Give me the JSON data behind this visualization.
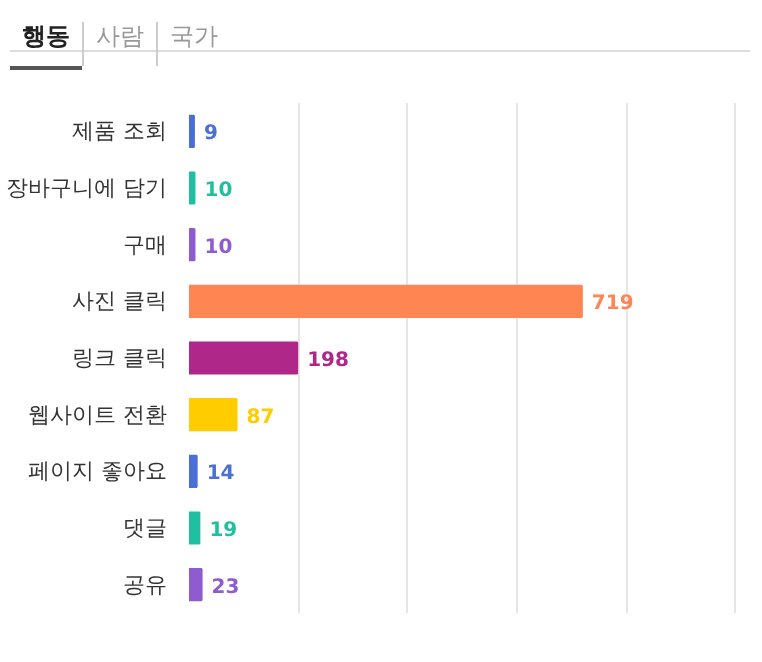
{
  "chart_data": {
    "type": "bar",
    "orientation": "horizontal",
    "categories": [
      "제품 조회",
      "장바구니에 담기",
      "구매",
      "사진 클릭",
      "링크 클릭",
      "웹사이트 전환",
      "페이지 좋아요",
      "댓글",
      "공유"
    ],
    "values": [
      9,
      10,
      10,
      719,
      198,
      87,
      14,
      19,
      23
    ],
    "colors": [
      "#4a6fd6",
      "#1fbfa0",
      "#8e5bd0",
      "#ff8552",
      "#b0278a",
      "#ffcc00",
      "#4a6fd6",
      "#1fbfa0",
      "#8e5bd0"
    ],
    "data_labels": true,
    "tick_labels": "y",
    "grid": "x",
    "annotations": [
      "행동",
      "사람",
      "국가"
    ]
  }
}
